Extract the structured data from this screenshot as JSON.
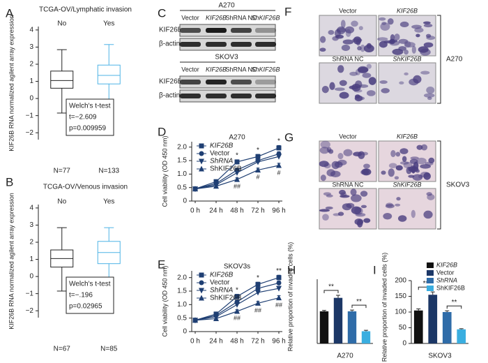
{
  "chart_data": [
    {
      "type": "box",
      "panel": "A",
      "title": "TCGA-OV/Lymphatic invasion",
      "ylabel": "KIF26B RNA normalized agilent array expression",
      "categories": [
        "No",
        "Yes"
      ],
      "colors": [
        "#222222",
        "#4db3e6"
      ],
      "stats": [
        [
          -0.85,
          0.6,
          1.05,
          1.6,
          2.85
        ],
        [
          -0.45,
          0.85,
          1.35,
          1.95,
          3.15
        ]
      ],
      "n_labels": [
        "N=77",
        "N=133"
      ],
      "annotation": [
        "Welch's t-test",
        "t=−2.609",
        "p=0.009959"
      ],
      "ylim": [
        -2.4,
        4.2
      ],
      "yticks": [
        {
          "value": -2,
          "label": "−2"
        },
        {
          "value": -1,
          "label": "−1"
        },
        0,
        1,
        2,
        3,
        4
      ]
    },
    {
      "type": "box",
      "panel": "B",
      "title": "TCGA-OV/Venous invasion",
      "ylabel": "KIF26B RNA normalized agilent array expression",
      "categories": [
        "No",
        "Yes"
      ],
      "colors": [
        "#222222",
        "#4db3e6"
      ],
      "stats": [
        [
          -0.85,
          0.55,
          1.05,
          1.55,
          2.85
        ],
        [
          -0.5,
          0.75,
          1.4,
          2.05,
          2.85
        ]
      ],
      "n_labels": [
        "N=67",
        "N=85"
      ],
      "annotation": [
        "Welch's t-test",
        "t=−.196",
        "p=0.02965"
      ],
      "ylim": [
        -2.4,
        4.2
      ],
      "yticks": [
        {
          "value": -2,
          "label": "−2"
        },
        {
          "value": -1,
          "label": "−1"
        },
        0,
        1,
        2,
        3,
        4
      ]
    },
    {
      "type": "line",
      "panel": "D",
      "title": "A270",
      "ylabel": "Cell viability (OD 450 nm)",
      "categories": [
        "0 h",
        "24 h",
        "48 h",
        "72 h",
        "96 h"
      ],
      "color": "#1f3f73",
      "series": [
        {
          "name": "KIF26B",
          "marker": "square",
          "values": [
            0.45,
            0.72,
            1.45,
            1.65,
            1.97
          ],
          "errors": [
            0.04,
            0.05,
            0.08,
            0.08,
            0.09
          ]
        },
        {
          "name": "Vector",
          "marker": "circle",
          "values": [
            0.45,
            0.65,
            1.15,
            1.5,
            1.75
          ],
          "errors": [
            0.04,
            0.05,
            0.07,
            0.08,
            0.08
          ]
        },
        {
          "name": "ShRNA",
          "marker": "triangle-down",
          "values": [
            0.45,
            0.6,
            1.05,
            1.45,
            1.65
          ],
          "errors": [
            0.04,
            0.05,
            0.07,
            0.08,
            0.08
          ]
        },
        {
          "name": "ShKIF26B",
          "marker": "triangle-up",
          "values": [
            0.45,
            0.55,
            0.8,
            1.15,
            1.32
          ],
          "errors": [
            0.04,
            0.04,
            0.06,
            0.07,
            0.08
          ]
        }
      ],
      "above": [
        null,
        null,
        "*",
        "*",
        "*"
      ],
      "below": [
        null,
        null,
        "##",
        "#",
        "#"
      ],
      "ylim": [
        0,
        2.2
      ],
      "yticks": [
        0,
        0.5,
        {
          "value": 1,
          "label": "1.0"
        },
        1.5,
        {
          "value": 2,
          "label": "2.0"
        }
      ]
    },
    {
      "type": "line",
      "panel": "E",
      "title": "SKOV3s",
      "ylabel": "Cell viability (OD 450 nm)",
      "categories": [
        "0 h",
        "24 h",
        "48 h",
        "72 h",
        "96 h"
      ],
      "color": "#1f3f73",
      "series": [
        {
          "name": "KIF26B",
          "marker": "square",
          "values": [
            0.42,
            0.65,
            1.3,
            1.75,
            2.0
          ],
          "errors": [
            0.04,
            0.05,
            0.08,
            0.08,
            0.09
          ]
        },
        {
          "name": "Vector",
          "marker": "circle",
          "values": [
            0.42,
            0.6,
            1.1,
            1.6,
            1.8
          ],
          "errors": [
            0.04,
            0.05,
            0.07,
            0.08,
            0.08
          ]
        },
        {
          "name": "ShRNA",
          "marker": "triangle-down",
          "values": [
            0.42,
            0.55,
            1.0,
            1.45,
            1.6
          ],
          "errors": [
            0.04,
            0.05,
            0.07,
            0.08,
            0.08
          ]
        },
        {
          "name": "ShKIF26B",
          "marker": "triangle-up",
          "values": [
            0.42,
            0.48,
            0.75,
            1.05,
            1.25
          ],
          "errors": [
            0.04,
            0.04,
            0.06,
            0.07,
            0.08
          ]
        }
      ],
      "above": [
        null,
        null,
        "*",
        "*",
        "**"
      ],
      "below": [
        null,
        null,
        "##",
        "##",
        "##"
      ],
      "ylim": [
        0,
        2.25
      ],
      "yticks": [
        0,
        0.5,
        {
          "value": 1,
          "label": "1.0"
        },
        1.5,
        {
          "value": 2,
          "label": "2.0"
        }
      ]
    },
    {
      "type": "bar",
      "panel": "H",
      "xlabel": "A270",
      "ylabel": "Relative proportion of invaded cells (%)",
      "values": [
        100,
        142,
        100,
        38
      ],
      "errors": [
        3,
        8,
        4,
        3
      ],
      "colors": [
        "#111111",
        "#1c3766",
        "#2f6ca8",
        "#3aaee0"
      ],
      "significance": [
        {
          "bars": [
            0,
            1
          ],
          "label": "**"
        },
        {
          "bars": [
            2,
            3
          ],
          "label": "**"
        }
      ],
      "ylim": [
        0,
        200
      ]
    },
    {
      "type": "bar",
      "panel": "I",
      "xlabel": "SKOV3",
      "ylabel": "Relative proportion of invaded cells (%)",
      "categories": [
        "KIF26B",
        "Vector",
        "ShRNA",
        "ShKIF26B"
      ],
      "values": [
        105,
        155,
        100,
        45
      ],
      "errors": [
        5,
        9,
        4,
        2
      ],
      "colors": [
        "#111111",
        "#1c3766",
        "#2f6ca8",
        "#3aaee0"
      ],
      "significance": [
        {
          "bars": [
            0,
            1
          ],
          "label": "**"
        },
        {
          "bars": [
            2,
            3
          ],
          "label": "**"
        }
      ],
      "ylim": [
        0,
        200
      ],
      "yticks": [
        0,
        50,
        100,
        150,
        200
      ]
    }
  ],
  "blots": {
    "panel": "C",
    "groups": [
      {
        "cell_line": "A270",
        "columns": [
          "Vector",
          "KIF26B",
          "ShRNA NC",
          "ShKIF26B"
        ],
        "rows": [
          "KIF26B",
          "β-actin"
        ]
      },
      {
        "cell_line": "SKOV3",
        "columns": [
          "Vector",
          "KIF26B",
          "ShRNA NC",
          "ShKIF26B"
        ],
        "rows": [
          "KIF26B",
          "β-actin"
        ]
      }
    ]
  },
  "micrographs": [
    {
      "panel": "F",
      "cell_line": "A270",
      "labels": [
        "Vector",
        "KIF26B",
        "ShRNA NC",
        "ShKIF26B"
      ]
    },
    {
      "panel": "G",
      "cell_line": "SKOV3",
      "labels": [
        "Vector",
        "KIF26B",
        "ShRNA NC",
        "ShKIF26B"
      ]
    }
  ]
}
